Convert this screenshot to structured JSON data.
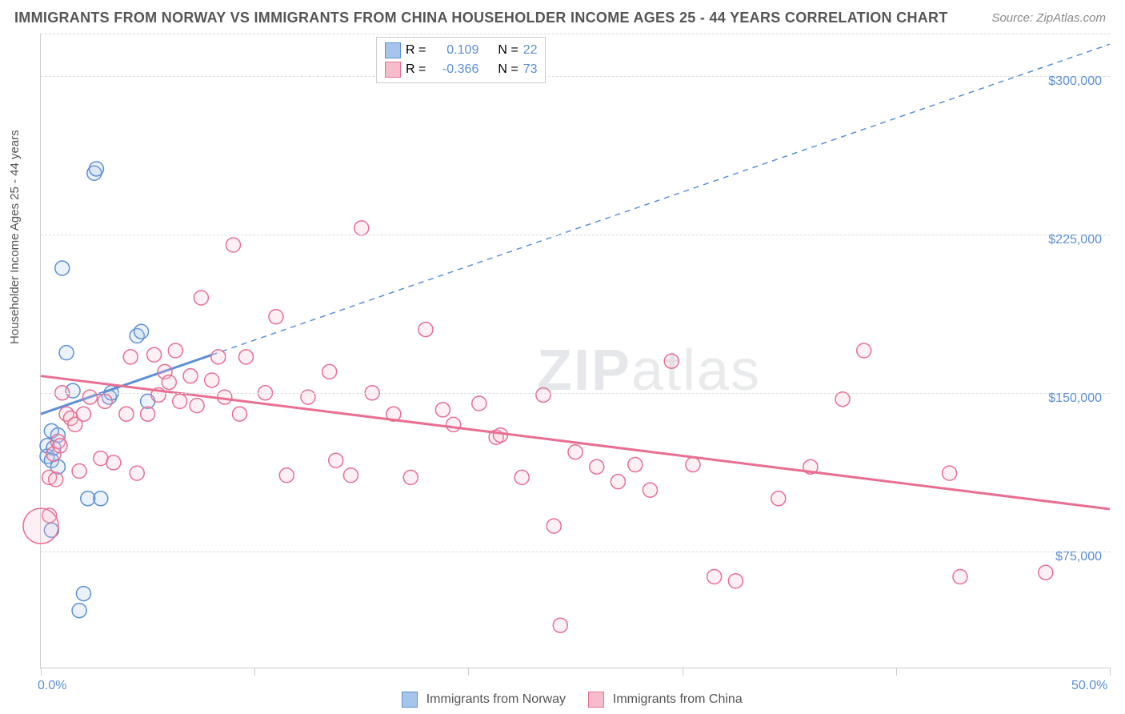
{
  "title": "IMMIGRANTS FROM NORWAY VS IMMIGRANTS FROM CHINA HOUSEHOLDER INCOME AGES 25 - 44 YEARS CORRELATION CHART",
  "source": "Source: ZipAtlas.com",
  "ylabel": "Householder Income Ages 25 - 44 years",
  "watermark_bold": "ZIP",
  "watermark_thin": "atlas",
  "chart": {
    "type": "scatter",
    "background_color": "#ffffff",
    "grid_color": "#dddddd",
    "axis_color": "#cccccc",
    "text_color": "#555555",
    "value_color": "#5b8fd6",
    "xlim": [
      0,
      50
    ],
    "ylim": [
      20000,
      320000
    ],
    "xticks": [
      0,
      10,
      20,
      30,
      40,
      50
    ],
    "xtick_labels": {
      "0": "0.0%",
      "50": "50.0%"
    },
    "yticks": [
      75000,
      150000,
      225000,
      300000
    ],
    "ytick_labels": [
      "$75,000",
      "$150,000",
      "$225,000",
      "$300,000"
    ],
    "point_radius": 9,
    "point_stroke_width": 1.5,
    "point_fill_opacity": 0.22,
    "series": [
      {
        "id": "norway",
        "label": "Immigrants from Norway",
        "color_stroke": "#5b8fd6",
        "color_fill": "#a7c5ea",
        "R": "0.109",
        "N": "22",
        "regression": {
          "x1": 0,
          "y1": 140000,
          "x2": 8,
          "y2": 168000,
          "solid": true
        },
        "extrapolation": {
          "x1": 8,
          "y1": 168000,
          "x2": 50,
          "y2": 315000,
          "dashed": true
        },
        "points": [
          [
            0.3,
            120000
          ],
          [
            0.3,
            125000
          ],
          [
            0.5,
            118000
          ],
          [
            0.5,
            132000
          ],
          [
            0.5,
            85000
          ],
          [
            0.6,
            124000
          ],
          [
            0.8,
            130000
          ],
          [
            0.8,
            115000
          ],
          [
            1.0,
            209000
          ],
          [
            1.2,
            169000
          ],
          [
            1.5,
            151000
          ],
          [
            1.8,
            47000
          ],
          [
            2.0,
            55000
          ],
          [
            2.2,
            100000
          ],
          [
            2.5,
            254000
          ],
          [
            2.6,
            256000
          ],
          [
            2.8,
            100000
          ],
          [
            3.2,
            148000
          ],
          [
            3.3,
            150000
          ],
          [
            4.5,
            177000
          ],
          [
            4.7,
            179000
          ],
          [
            5.0,
            146000
          ]
        ]
      },
      {
        "id": "china",
        "label": "Immigrants from China",
        "color_stroke": "#e86f92",
        "color_fill": "#f6bccc",
        "R": "-0.366",
        "N": "73",
        "regression": {
          "x1": 0,
          "y1": 158000,
          "x2": 50,
          "y2": 95000,
          "solid": true
        },
        "points": [
          [
            0.4,
            92000
          ],
          [
            0.4,
            110000
          ],
          [
            0.6,
            121000
          ],
          [
            0.7,
            109000
          ],
          [
            0.8,
            127000
          ],
          [
            0.9,
            125000
          ],
          [
            1.0,
            150000
          ],
          [
            1.2,
            140000
          ],
          [
            1.4,
            138000
          ],
          [
            1.6,
            135000
          ],
          [
            1.8,
            113000
          ],
          [
            2.0,
            140000
          ],
          [
            2.3,
            148000
          ],
          [
            2.8,
            119000
          ],
          [
            3.0,
            146000
          ],
          [
            3.4,
            117000
          ],
          [
            4.0,
            140000
          ],
          [
            4.2,
            167000
          ],
          [
            4.5,
            112000
          ],
          [
            5.0,
            140000
          ],
          [
            5.3,
            168000
          ],
          [
            5.5,
            149000
          ],
          [
            5.8,
            160000
          ],
          [
            6.0,
            155000
          ],
          [
            6.3,
            170000
          ],
          [
            6.5,
            146000
          ],
          [
            7.0,
            158000
          ],
          [
            7.3,
            144000
          ],
          [
            7.5,
            195000
          ],
          [
            8.0,
            156000
          ],
          [
            8.3,
            167000
          ],
          [
            8.6,
            148000
          ],
          [
            9.0,
            220000
          ],
          [
            9.3,
            140000
          ],
          [
            9.6,
            167000
          ],
          [
            10.5,
            150000
          ],
          [
            11.0,
            186000
          ],
          [
            11.5,
            111000
          ],
          [
            12.5,
            148000
          ],
          [
            13.5,
            160000
          ],
          [
            13.8,
            118000
          ],
          [
            14.5,
            111000
          ],
          [
            15.0,
            228000
          ],
          [
            15.5,
            150000
          ],
          [
            16.5,
            140000
          ],
          [
            17.3,
            110000
          ],
          [
            18.0,
            180000
          ],
          [
            18.8,
            142000
          ],
          [
            19.3,
            135000
          ],
          [
            20.5,
            145000
          ],
          [
            21.3,
            129000
          ],
          [
            21.5,
            130000
          ],
          [
            22.5,
            110000
          ],
          [
            23.5,
            149000
          ],
          [
            24.0,
            87000
          ],
          [
            24.3,
            40000
          ],
          [
            25.0,
            122000
          ],
          [
            26.0,
            115000
          ],
          [
            27.0,
            108000
          ],
          [
            27.8,
            116000
          ],
          [
            28.5,
            104000
          ],
          [
            29.5,
            165000
          ],
          [
            30.5,
            116000
          ],
          [
            31.5,
            63000
          ],
          [
            32.5,
            61000
          ],
          [
            34.5,
            100000
          ],
          [
            36.0,
            115000
          ],
          [
            37.5,
            147000
          ],
          [
            38.5,
            170000
          ],
          [
            42.5,
            112000
          ],
          [
            43.0,
            63000
          ],
          [
            47.0,
            65000
          ],
          [
            0.0,
            87000,
            22
          ]
        ]
      }
    ],
    "legend_top": {
      "rows": [
        {
          "swatch_fill": "#a7c5ea",
          "swatch_stroke": "#5b8fd6",
          "r_label": "R =",
          "r_val": "0.109",
          "n_label": "N =",
          "n_val": "22"
        },
        {
          "swatch_fill": "#f6bccc",
          "swatch_stroke": "#e86f92",
          "r_label": "R =",
          "r_val": "-0.366",
          "n_label": "N =",
          "n_val": "73"
        }
      ]
    },
    "legend_bottom": [
      {
        "swatch_fill": "#a7c5ea",
        "swatch_stroke": "#5b8fd6",
        "label": "Immigrants from Norway"
      },
      {
        "swatch_fill": "#f6bccc",
        "swatch_stroke": "#e86f92",
        "label": "Immigrants from China"
      }
    ]
  }
}
